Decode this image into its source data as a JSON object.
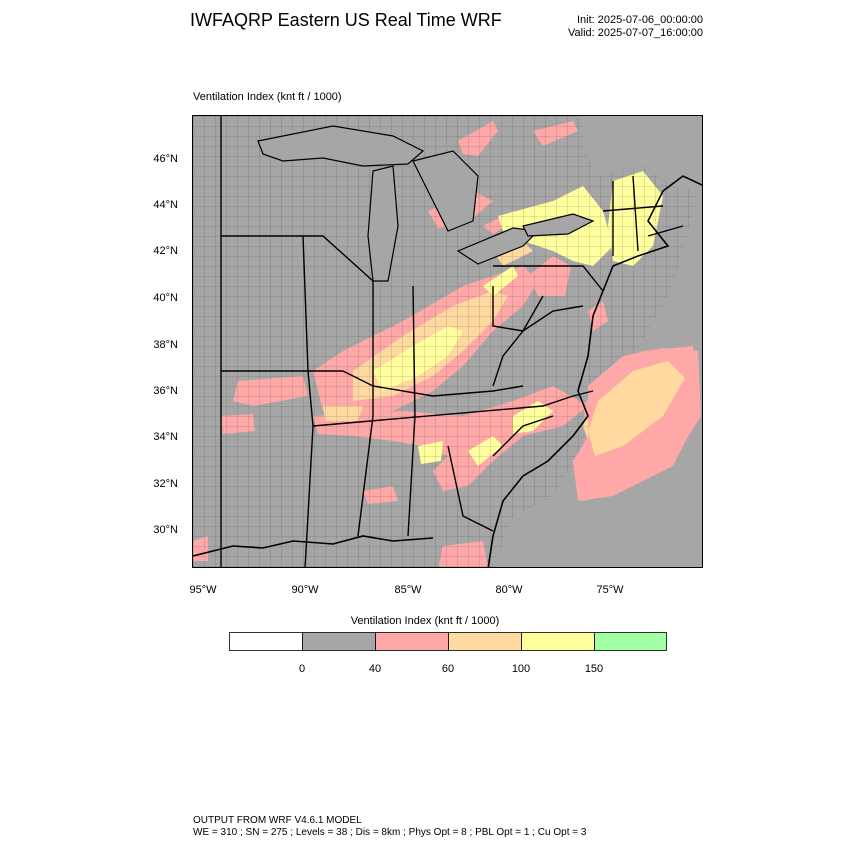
{
  "header": {
    "title": "IWFAQRP Eastern US Real Time WRF",
    "init": "Init: 2025-07-06_00:00:00",
    "valid": "Valid: 2025-07-07_16:00:00"
  },
  "field": {
    "title": "Ventilation Index   (knt ft / 1000)"
  },
  "axes": {
    "lat_labels": [
      "46°N",
      "44°N",
      "42°N",
      "40°N",
      "38°N",
      "36°N",
      "34°N",
      "32°N",
      "30°N"
    ],
    "lon_labels": [
      "95°W",
      "90°W",
      "85°W",
      "80°W",
      "75°W"
    ]
  },
  "colorbar": {
    "title": "Ventilation Index  (knt ft / 1000)",
    "tick_labels": [
      "0",
      "40",
      "60",
      "100",
      "150"
    ],
    "colors": [
      "#ffffff",
      "#a6a6a6",
      "#ffa8a8",
      "#ffd9a0",
      "#ffff9e",
      "#a3ffa3"
    ]
  },
  "colors": {
    "land_low": "#a6a6a6",
    "band_40_60": "#ffa8a8",
    "band_60_100": "#ffd9a0",
    "band_100_150": "#ffff9e",
    "lakes": "#a6a6a6",
    "border": "#000000"
  },
  "footer": {
    "line1": "OUTPUT FROM WRF V4.6.1 MODEL",
    "line2": "WE = 310 ; SN = 275 ; Levels = 38 ; Dis = 8km ; Phys Opt = 8 ; PBL Opt = 1 ; Cu Opt = 3"
  }
}
